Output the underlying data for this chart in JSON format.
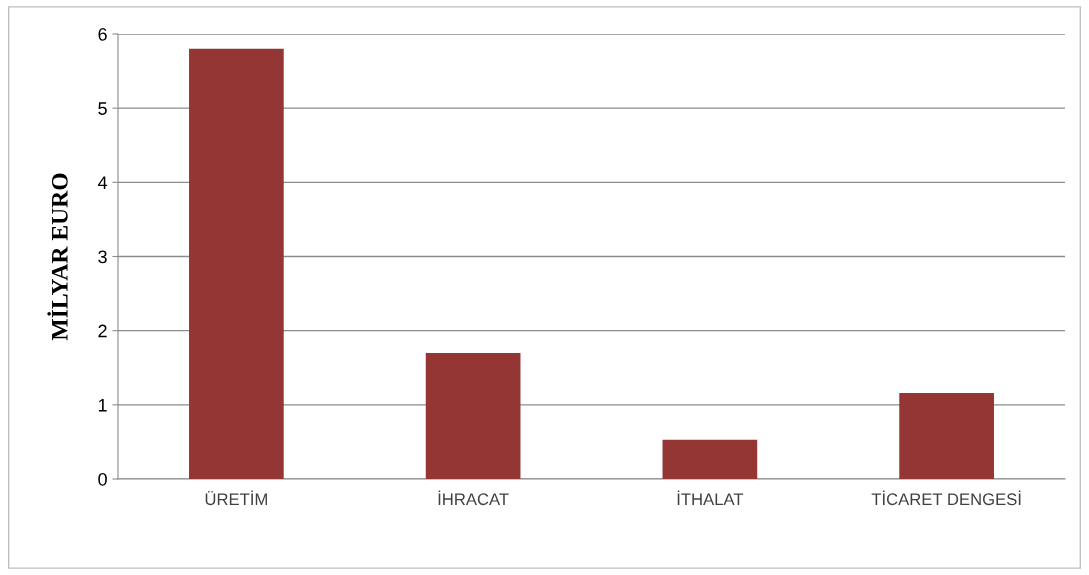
{
  "chart_data": {
    "type": "bar",
    "ylabel": "MİLYAR EURO",
    "categories": [
      "ÜRETİM",
      "İHRACAT",
      "İTHALAT",
      "TİCARET DENGESİ"
    ],
    "series": [
      {
        "color": "#943634",
        "values": [
          5.8,
          1.7,
          0.53,
          1.16
        ]
      }
    ],
    "ylim": [
      0,
      6
    ],
    "yticks": [
      0,
      1,
      2,
      3,
      4,
      5,
      6
    ],
    "grid": "y",
    "legend": false
  }
}
